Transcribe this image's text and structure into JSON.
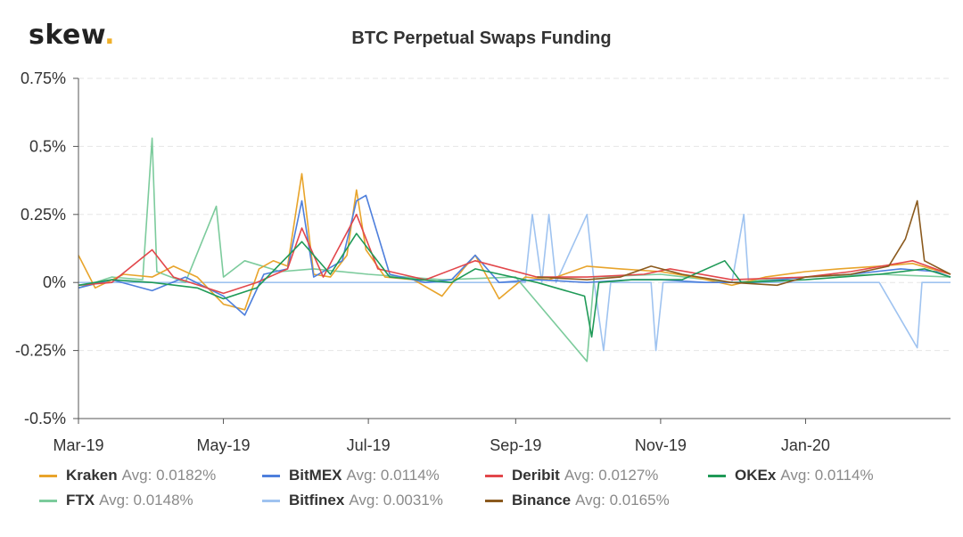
{
  "brand": {
    "name": "skew",
    "dot": "."
  },
  "chart_data": {
    "type": "line",
    "title": "BTC Perpetual Swaps Funding",
    "xlabel": "",
    "ylabel": "",
    "x_range": [
      "2019-03-01",
      "2020-03-02"
    ],
    "ylim": [
      -0.5,
      0.75
    ],
    "y_ticks": [
      {
        "value": -0.5,
        "label": "-0.5%"
      },
      {
        "value": -0.25,
        "label": "-0.25%"
      },
      {
        "value": 0,
        "label": "0%"
      },
      {
        "value": 0.25,
        "label": "0.25%"
      },
      {
        "value": 0.5,
        "label": "0.5%"
      },
      {
        "value": 0.75,
        "label": "0.75%"
      }
    ],
    "x_ticks": [
      {
        "date": "2019-03-01",
        "label": "Mar-19"
      },
      {
        "date": "2019-05-01",
        "label": "May-19"
      },
      {
        "date": "2019-07-01",
        "label": "Jul-19"
      },
      {
        "date": "2019-09-01",
        "label": "Sep-19"
      },
      {
        "date": "2019-11-01",
        "label": "Nov-19"
      },
      {
        "date": "2020-01-01",
        "label": "Jan-20"
      }
    ],
    "grid": true,
    "legend_position": "bottom",
    "series": [
      {
        "name": "Kraken",
        "avg_label": "Avg: 0.0182%",
        "color": "#e8a42b",
        "points": [
          [
            "2019-03-01",
            0.1
          ],
          [
            "2019-03-08",
            -0.02
          ],
          [
            "2019-03-20",
            0.03
          ],
          [
            "2019-04-01",
            0.02
          ],
          [
            "2019-04-10",
            0.06
          ],
          [
            "2019-04-20",
            0.02
          ],
          [
            "2019-05-01",
            -0.08
          ],
          [
            "2019-05-10",
            -0.1
          ],
          [
            "2019-05-16",
            0.05
          ],
          [
            "2019-05-22",
            0.08
          ],
          [
            "2019-05-28",
            0.06
          ],
          [
            "2019-06-03",
            0.4
          ],
          [
            "2019-06-08",
            0.03
          ],
          [
            "2019-06-15",
            0.02
          ],
          [
            "2019-06-22",
            0.1
          ],
          [
            "2019-06-26",
            0.34
          ],
          [
            "2019-06-30",
            0.12
          ],
          [
            "2019-07-08",
            0.02
          ],
          [
            "2019-07-20",
            0.01
          ],
          [
            "2019-08-01",
            -0.05
          ],
          [
            "2019-08-10",
            0.05
          ],
          [
            "2019-08-15",
            0.1
          ],
          [
            "2019-08-25",
            -0.06
          ],
          [
            "2019-09-05",
            0.02
          ],
          [
            "2019-09-15",
            0.01
          ],
          [
            "2019-10-01",
            0.06
          ],
          [
            "2019-10-15",
            0.05
          ],
          [
            "2019-11-01",
            0.04
          ],
          [
            "2019-11-15",
            0.02
          ],
          [
            "2019-12-01",
            -0.01
          ],
          [
            "2019-12-15",
            0.02
          ],
          [
            "2020-01-01",
            0.04
          ],
          [
            "2020-01-15",
            0.05
          ],
          [
            "2020-02-01",
            0.06
          ],
          [
            "2020-02-15",
            0.07
          ],
          [
            "2020-03-02",
            0.03
          ]
        ]
      },
      {
        "name": "BitMEX",
        "avg_label": "Avg: 0.0114%",
        "color": "#4e7fdc",
        "points": [
          [
            "2019-03-01",
            -0.02
          ],
          [
            "2019-03-15",
            0.01
          ],
          [
            "2019-04-01",
            -0.03
          ],
          [
            "2019-04-15",
            0.02
          ],
          [
            "2019-05-01",
            -0.05
          ],
          [
            "2019-05-10",
            -0.12
          ],
          [
            "2019-05-18",
            0.03
          ],
          [
            "2019-05-28",
            0.05
          ],
          [
            "2019-06-03",
            0.3
          ],
          [
            "2019-06-08",
            0.02
          ],
          [
            "2019-06-20",
            0.08
          ],
          [
            "2019-06-26",
            0.3
          ],
          [
            "2019-06-30",
            0.32
          ],
          [
            "2019-07-10",
            0.03
          ],
          [
            "2019-07-25",
            0.0
          ],
          [
            "2019-08-05",
            0.01
          ],
          [
            "2019-08-15",
            0.1
          ],
          [
            "2019-08-25",
            0.0
          ],
          [
            "2019-09-10",
            0.01
          ],
          [
            "2019-10-01",
            0.0
          ],
          [
            "2019-10-20",
            0.01
          ],
          [
            "2019-11-01",
            0.01
          ],
          [
            "2019-11-20",
            0.0
          ],
          [
            "2019-12-10",
            0.0
          ],
          [
            "2020-01-01",
            0.02
          ],
          [
            "2020-01-20",
            0.03
          ],
          [
            "2020-02-10",
            0.05
          ],
          [
            "2020-02-25",
            0.04
          ],
          [
            "2020-03-02",
            0.02
          ]
        ]
      },
      {
        "name": "Deribit",
        "avg_label": "Avg: 0.0127%",
        "color": "#e2474b",
        "points": [
          [
            "2019-03-01",
            -0.01
          ],
          [
            "2019-03-15",
            0.0
          ],
          [
            "2019-04-01",
            0.12
          ],
          [
            "2019-04-10",
            0.02
          ],
          [
            "2019-05-01",
            -0.04
          ],
          [
            "2019-05-15",
            0.0
          ],
          [
            "2019-05-28",
            0.05
          ],
          [
            "2019-06-03",
            0.2
          ],
          [
            "2019-06-12",
            0.02
          ],
          [
            "2019-06-26",
            0.25
          ],
          [
            "2019-07-05",
            0.05
          ],
          [
            "2019-07-25",
            0.01
          ],
          [
            "2019-08-15",
            0.08
          ],
          [
            "2019-09-10",
            0.02
          ],
          [
            "2019-10-01",
            0.02
          ],
          [
            "2019-10-25",
            0.03
          ],
          [
            "2019-11-05",
            0.05
          ],
          [
            "2019-12-01",
            0.01
          ],
          [
            "2020-01-01",
            0.02
          ],
          [
            "2020-01-20",
            0.04
          ],
          [
            "2020-02-15",
            0.08
          ],
          [
            "2020-03-02",
            0.03
          ]
        ]
      },
      {
        "name": "OKEx",
        "avg_label": "Avg: 0.0114%",
        "color": "#1f9a57",
        "points": [
          [
            "2019-03-01",
            -0.01
          ],
          [
            "2019-03-15",
            0.01
          ],
          [
            "2019-04-01",
            0.0
          ],
          [
            "2019-04-20",
            -0.02
          ],
          [
            "2019-05-01",
            -0.06
          ],
          [
            "2019-05-15",
            -0.02
          ],
          [
            "2019-06-03",
            0.15
          ],
          [
            "2019-06-15",
            0.03
          ],
          [
            "2019-06-26",
            0.18
          ],
          [
            "2019-07-10",
            0.02
          ],
          [
            "2019-08-05",
            0.0
          ],
          [
            "2019-08-15",
            0.05
          ],
          [
            "2019-09-10",
            0.0
          ],
          [
            "2019-09-30",
            -0.05
          ],
          [
            "2019-10-03",
            -0.2
          ],
          [
            "2019-10-06",
            0.0
          ],
          [
            "2019-10-20",
            0.01
          ],
          [
            "2019-11-10",
            0.01
          ],
          [
            "2019-11-28",
            0.08
          ],
          [
            "2019-12-05",
            0.0
          ],
          [
            "2020-01-01",
            0.01
          ],
          [
            "2020-02-01",
            0.03
          ],
          [
            "2020-02-20",
            0.05
          ],
          [
            "2020-03-02",
            0.02
          ]
        ]
      },
      {
        "name": "FTX",
        "avg_label": "Avg: 0.0148%",
        "color": "#7ccb9c",
        "points": [
          [
            "2019-03-01",
            -0.02
          ],
          [
            "2019-03-15",
            0.02
          ],
          [
            "2019-03-28",
            0.01
          ],
          [
            "2019-04-01",
            0.53
          ],
          [
            "2019-04-03",
            0.04
          ],
          [
            "2019-04-15",
            0.0
          ],
          [
            "2019-04-28",
            0.28
          ],
          [
            "2019-05-01",
            0.02
          ],
          [
            "2019-05-10",
            0.08
          ],
          [
            "2019-05-25",
            0.04
          ],
          [
            "2019-06-08",
            0.05
          ],
          [
            "2019-07-01",
            0.03
          ],
          [
            "2019-08-01",
            0.01
          ],
          [
            "2019-09-01",
            0.02
          ],
          [
            "2019-10-01",
            -0.29
          ],
          [
            "2019-10-04",
            0.02
          ],
          [
            "2019-11-01",
            0.03
          ],
          [
            "2019-12-01",
            0.0
          ],
          [
            "2020-01-01",
            0.02
          ],
          [
            "2020-02-01",
            0.03
          ],
          [
            "2020-03-02",
            0.02
          ]
        ]
      },
      {
        "name": "Bitfinex",
        "avg_label": "Avg: 0.0031%",
        "color": "#9fc3f0",
        "points": [
          [
            "2019-03-01",
            0.0
          ],
          [
            "2019-04-01",
            0.0
          ],
          [
            "2019-05-01",
            0.0
          ],
          [
            "2019-06-01",
            0.0
          ],
          [
            "2019-07-01",
            0.0
          ],
          [
            "2019-08-01",
            0.0
          ],
          [
            "2019-09-05",
            0.0
          ],
          [
            "2019-09-08",
            0.25
          ],
          [
            "2019-09-12",
            0.0
          ],
          [
            "2019-09-15",
            0.25
          ],
          [
            "2019-09-18",
            0.0
          ],
          [
            "2019-10-01",
            0.25
          ],
          [
            "2019-10-04",
            0.0
          ],
          [
            "2019-10-08",
            -0.25
          ],
          [
            "2019-10-11",
            0.0
          ],
          [
            "2019-10-28",
            0.0
          ],
          [
            "2019-10-30",
            -0.25
          ],
          [
            "2019-11-02",
            0.0
          ],
          [
            "2019-12-01",
            0.0
          ],
          [
            "2019-12-06",
            0.25
          ],
          [
            "2019-12-08",
            0.0
          ],
          [
            "2020-01-01",
            0.0
          ],
          [
            "2020-02-01",
            0.0
          ],
          [
            "2020-02-17",
            -0.24
          ],
          [
            "2020-02-19",
            0.0
          ],
          [
            "2020-03-02",
            0.0
          ]
        ]
      },
      {
        "name": "Binance",
        "avg_label": "Avg: 0.0165%",
        "color": "#8b5a1e",
        "points": [
          [
            "2019-09-10",
            0.02
          ],
          [
            "2019-10-01",
            0.01
          ],
          [
            "2019-10-15",
            0.02
          ],
          [
            "2019-10-28",
            0.06
          ],
          [
            "2019-11-10",
            0.03
          ],
          [
            "2019-12-01",
            0.0
          ],
          [
            "2019-12-20",
            -0.01
          ],
          [
            "2020-01-01",
            0.02
          ],
          [
            "2020-01-20",
            0.03
          ],
          [
            "2020-02-05",
            0.06
          ],
          [
            "2020-02-12",
            0.16
          ],
          [
            "2020-02-17",
            0.3
          ],
          [
            "2020-02-20",
            0.08
          ],
          [
            "2020-03-02",
            0.03
          ]
        ]
      }
    ]
  }
}
